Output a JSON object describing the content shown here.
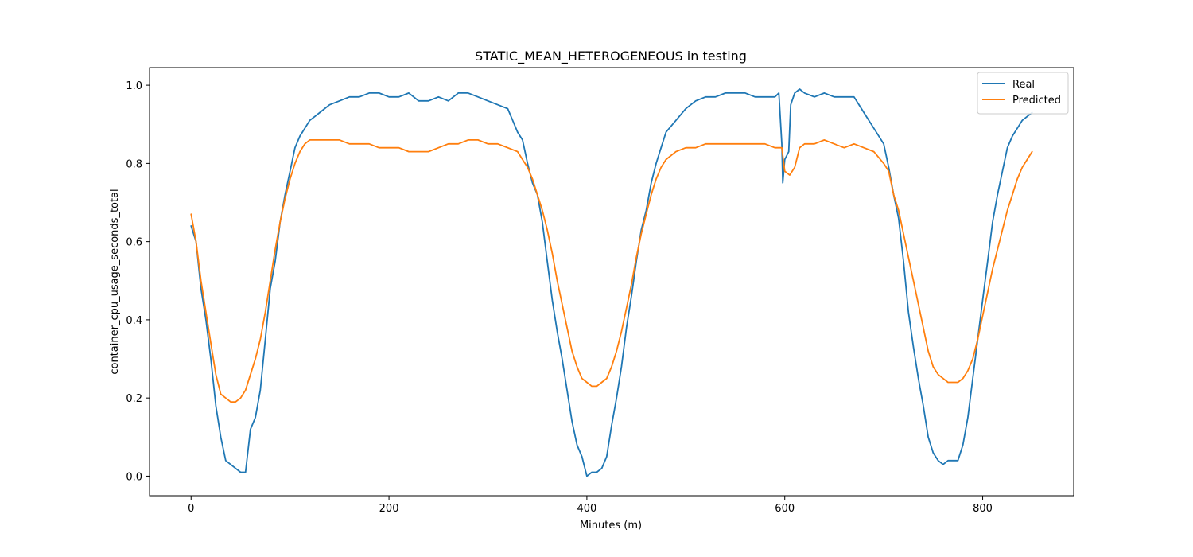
{
  "chart_data": {
    "type": "line",
    "title": "STATIC_MEAN_HETEROGENEOUS in testing",
    "xlabel": "Minutes (m)",
    "ylabel": "container_cpu_usage_seconds_total",
    "xlim": [
      -42,
      892
    ],
    "ylim": [
      -0.05,
      1.045
    ],
    "xticks": [
      0,
      200,
      400,
      600,
      800
    ],
    "yticks": [
      0.0,
      0.2,
      0.4,
      0.6,
      0.8,
      1.0
    ],
    "grid": false,
    "legend_position": "top-right",
    "series": [
      {
        "name": "Real",
        "color": "#1f77b4",
        "x": [
          0,
          5,
          10,
          15,
          20,
          25,
          30,
          35,
          40,
          45,
          50,
          55,
          60,
          65,
          70,
          75,
          80,
          85,
          90,
          95,
          100,
          105,
          110,
          115,
          120,
          125,
          130,
          140,
          150,
          160,
          170,
          180,
          190,
          200,
          210,
          220,
          230,
          240,
          250,
          260,
          270,
          280,
          290,
          300,
          310,
          320,
          325,
          330,
          335,
          340,
          345,
          350,
          355,
          360,
          365,
          370,
          375,
          380,
          385,
          390,
          395,
          400,
          405,
          410,
          415,
          420,
          425,
          430,
          435,
          440,
          445,
          450,
          455,
          460,
          465,
          470,
          475,
          480,
          490,
          500,
          510,
          520,
          530,
          540,
          550,
          560,
          570,
          580,
          590,
          594,
          597,
          598,
          600,
          604,
          606,
          610,
          615,
          620,
          630,
          640,
          650,
          660,
          670,
          680,
          690,
          700,
          705,
          710,
          715,
          720,
          725,
          730,
          735,
          740,
          745,
          750,
          755,
          760,
          765,
          770,
          775,
          780,
          785,
          790,
          795,
          800,
          805,
          810,
          815,
          820,
          825,
          830,
          835,
          840,
          845,
          850
        ],
        "values": [
          0.64,
          0.6,
          0.48,
          0.4,
          0.3,
          0.18,
          0.1,
          0.04,
          0.03,
          0.02,
          0.01,
          0.01,
          0.12,
          0.15,
          0.22,
          0.35,
          0.48,
          0.55,
          0.65,
          0.72,
          0.78,
          0.84,
          0.87,
          0.89,
          0.91,
          0.92,
          0.93,
          0.95,
          0.96,
          0.97,
          0.97,
          0.98,
          0.98,
          0.97,
          0.97,
          0.98,
          0.96,
          0.96,
          0.97,
          0.96,
          0.98,
          0.98,
          0.97,
          0.96,
          0.95,
          0.94,
          0.91,
          0.88,
          0.86,
          0.8,
          0.75,
          0.72,
          0.65,
          0.55,
          0.45,
          0.37,
          0.3,
          0.22,
          0.14,
          0.08,
          0.05,
          0.0,
          0.01,
          0.01,
          0.02,
          0.05,
          0.13,
          0.2,
          0.28,
          0.38,
          0.46,
          0.55,
          0.63,
          0.68,
          0.75,
          0.8,
          0.84,
          0.88,
          0.91,
          0.94,
          0.96,
          0.97,
          0.97,
          0.98,
          0.98,
          0.98,
          0.97,
          0.97,
          0.97,
          0.98,
          0.85,
          0.75,
          0.81,
          0.83,
          0.95,
          0.98,
          0.99,
          0.98,
          0.97,
          0.98,
          0.97,
          0.97,
          0.97,
          0.93,
          0.89,
          0.85,
          0.79,
          0.72,
          0.66,
          0.55,
          0.42,
          0.33,
          0.25,
          0.18,
          0.1,
          0.06,
          0.04,
          0.03,
          0.04,
          0.04,
          0.04,
          0.08,
          0.15,
          0.25,
          0.35,
          0.45,
          0.55,
          0.65,
          0.72,
          0.78,
          0.84,
          0.87,
          0.89,
          0.91,
          0.92,
          0.93
        ]
      },
      {
        "name": "Predicted",
        "color": "#ff7f0e",
        "x": [
          0,
          5,
          10,
          15,
          20,
          25,
          30,
          35,
          40,
          45,
          50,
          55,
          60,
          65,
          70,
          75,
          80,
          85,
          90,
          95,
          100,
          105,
          110,
          115,
          120,
          130,
          140,
          150,
          160,
          170,
          180,
          190,
          200,
          210,
          220,
          230,
          240,
          250,
          260,
          270,
          280,
          290,
          300,
          310,
          320,
          330,
          335,
          340,
          345,
          350,
          355,
          360,
          365,
          370,
          375,
          380,
          385,
          390,
          395,
          400,
          405,
          410,
          415,
          420,
          425,
          430,
          435,
          440,
          445,
          450,
          455,
          460,
          465,
          470,
          475,
          480,
          490,
          500,
          510,
          520,
          530,
          540,
          550,
          560,
          570,
          580,
          590,
          594,
          597,
          600,
          605,
          610,
          615,
          620,
          630,
          640,
          650,
          660,
          670,
          680,
          690,
          700,
          705,
          710,
          715,
          720,
          725,
          730,
          735,
          740,
          745,
          750,
          755,
          760,
          765,
          770,
          775,
          780,
          785,
          790,
          795,
          800,
          805,
          810,
          815,
          820,
          825,
          830,
          835,
          840,
          845,
          850
        ],
        "values": [
          0.67,
          0.6,
          0.5,
          0.42,
          0.34,
          0.26,
          0.21,
          0.2,
          0.19,
          0.19,
          0.2,
          0.22,
          0.26,
          0.3,
          0.35,
          0.42,
          0.5,
          0.58,
          0.65,
          0.71,
          0.76,
          0.8,
          0.83,
          0.85,
          0.86,
          0.86,
          0.86,
          0.86,
          0.85,
          0.85,
          0.85,
          0.84,
          0.84,
          0.84,
          0.83,
          0.83,
          0.83,
          0.84,
          0.85,
          0.85,
          0.86,
          0.86,
          0.85,
          0.85,
          0.84,
          0.83,
          0.81,
          0.79,
          0.76,
          0.72,
          0.68,
          0.63,
          0.57,
          0.5,
          0.44,
          0.38,
          0.32,
          0.28,
          0.25,
          0.24,
          0.23,
          0.23,
          0.24,
          0.25,
          0.28,
          0.32,
          0.37,
          0.43,
          0.49,
          0.56,
          0.62,
          0.67,
          0.72,
          0.76,
          0.79,
          0.81,
          0.83,
          0.84,
          0.84,
          0.85,
          0.85,
          0.85,
          0.85,
          0.85,
          0.85,
          0.85,
          0.84,
          0.84,
          0.84,
          0.78,
          0.77,
          0.79,
          0.84,
          0.85,
          0.85,
          0.86,
          0.85,
          0.84,
          0.85,
          0.84,
          0.83,
          0.8,
          0.78,
          0.72,
          0.68,
          0.62,
          0.56,
          0.5,
          0.44,
          0.38,
          0.32,
          0.28,
          0.26,
          0.25,
          0.24,
          0.24,
          0.24,
          0.25,
          0.27,
          0.3,
          0.35,
          0.41,
          0.47,
          0.53,
          0.58,
          0.63,
          0.68,
          0.72,
          0.76,
          0.79,
          0.81,
          0.83
        ]
      }
    ]
  }
}
